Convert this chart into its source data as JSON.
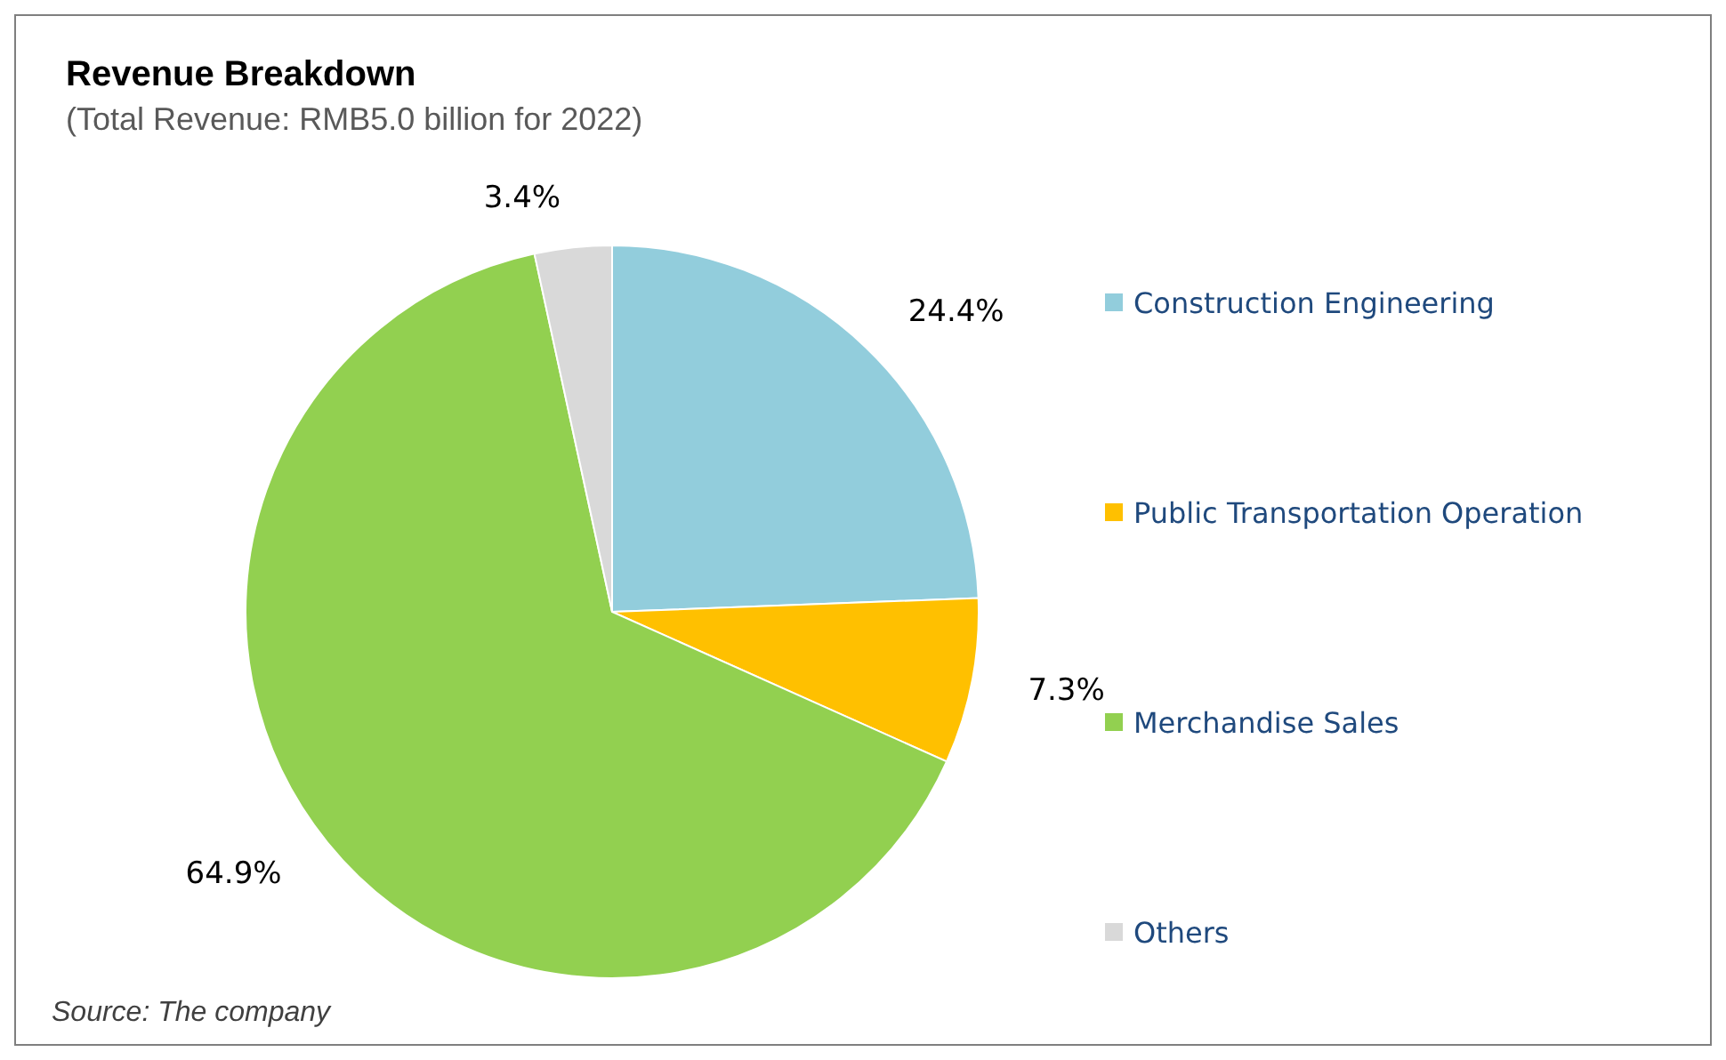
{
  "chart_data": {
    "type": "pie",
    "title": "Revenue Breakdown",
    "subtitle": "(Total Revenue: RMB5.0 billion for 2022)",
    "categories": [
      "Construction Engineering",
      "Public Transportation Operation",
      "Merchandise Sales",
      "Others"
    ],
    "values": [
      24.4,
      7.3,
      64.9,
      3.4
    ],
    "value_labels": [
      "24.4%",
      "7.3%",
      "64.9%",
      "3.4%"
    ],
    "colors": [
      "#92cddc",
      "#ffc000",
      "#92d050",
      "#d9d9d9"
    ],
    "legend": "right",
    "annotations": [
      "Source: The company"
    ]
  }
}
